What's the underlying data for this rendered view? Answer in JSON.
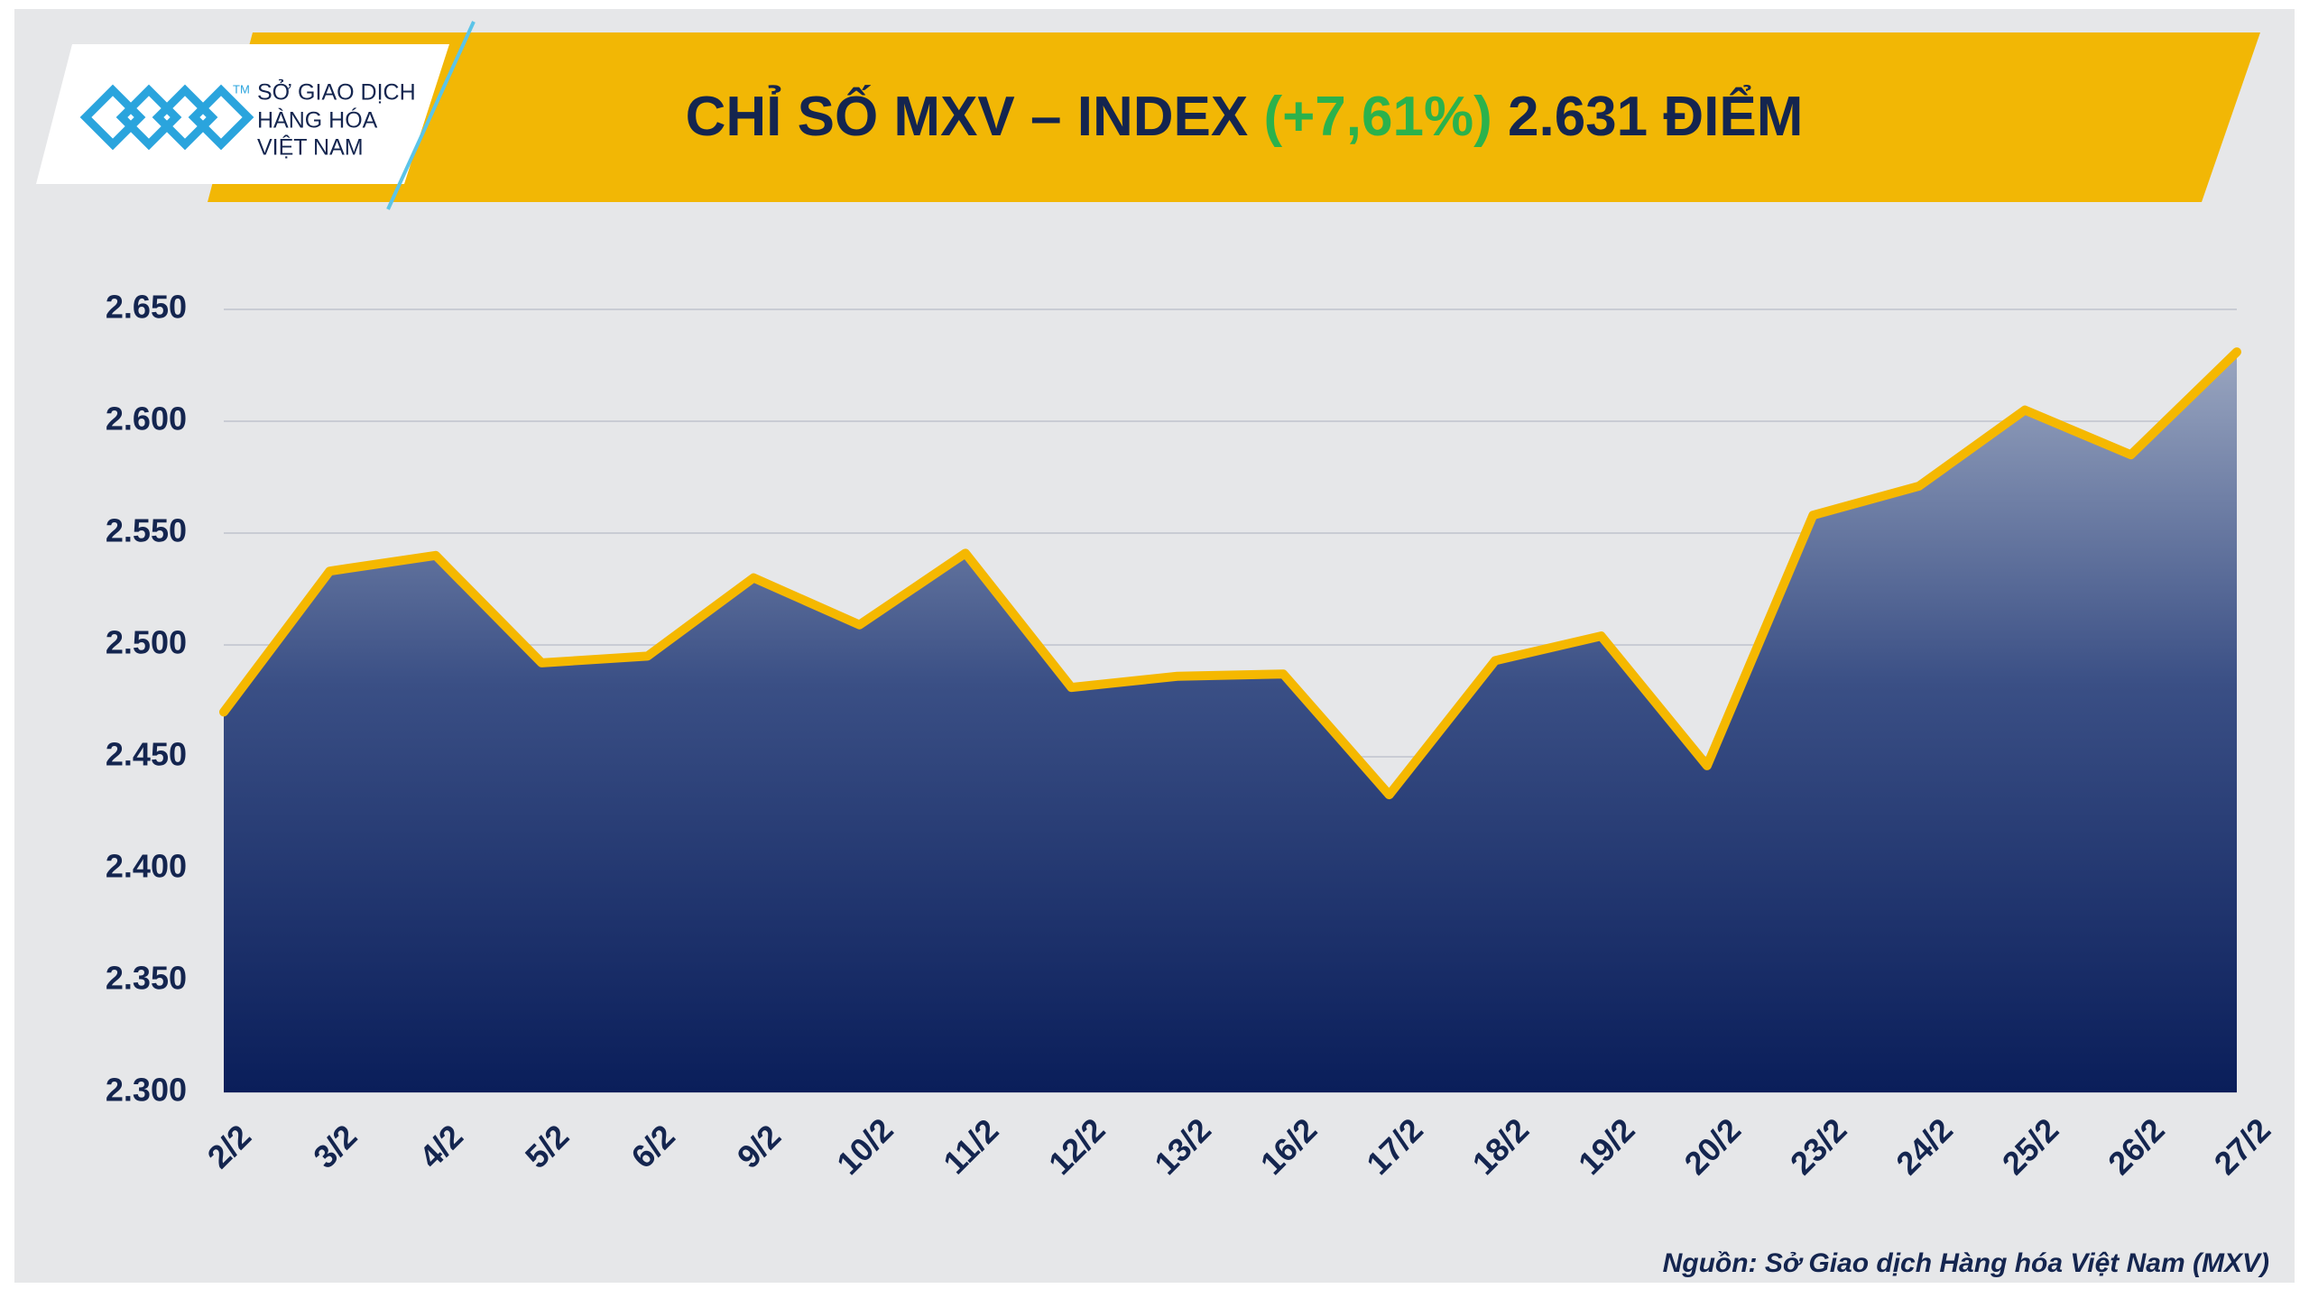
{
  "logo": {
    "mark": "TM",
    "lines": [
      "SỞ GIAO DỊCH",
      "HÀNG HÓA",
      "VIỆT NAM"
    ]
  },
  "chart_data": {
    "type": "area-line",
    "title": "CHỈ SỐ MXV – INDEX",
    "title_change": "(+7,61%)",
    "title_value": "2.631 ĐIỂM",
    "categories": [
      "2/2",
      "3/2",
      "4/2",
      "5/2",
      "6/2",
      "9/2",
      "10/2",
      "11/2",
      "12/2",
      "13/2",
      "16/2",
      "17/2",
      "18/2",
      "19/2",
      "20/2",
      "23/2",
      "24/2",
      "25/2",
      "26/2",
      "27/2"
    ],
    "series": [
      {
        "name": "MXV-Index",
        "color": "#f5b800",
        "values": [
          2470,
          2533,
          2540,
          2492,
          2495,
          2530,
          2509,
          2541,
          2481,
          2486,
          2487,
          2433,
          2493,
          2504,
          2446,
          2558,
          2571,
          2605,
          2585,
          2631
        ]
      }
    ],
    "ylim": [
      2300,
      2650
    ],
    "yticks": [
      {
        "value": 2300,
        "label": "2.300"
      },
      {
        "value": 2350,
        "label": "2.350"
      },
      {
        "value": 2400,
        "label": "2.400"
      },
      {
        "value": 2450,
        "label": "2.450"
      },
      {
        "value": 2500,
        "label": "2.500"
      },
      {
        "value": 2550,
        "label": "2.550"
      },
      {
        "value": 2600,
        "label": "2.600"
      },
      {
        "value": 2650,
        "label": "2.650"
      }
    ],
    "grid": true,
    "source": "Nguồn: Sở Giao dịch Hàng hóa Việt Nam (MXV)"
  }
}
